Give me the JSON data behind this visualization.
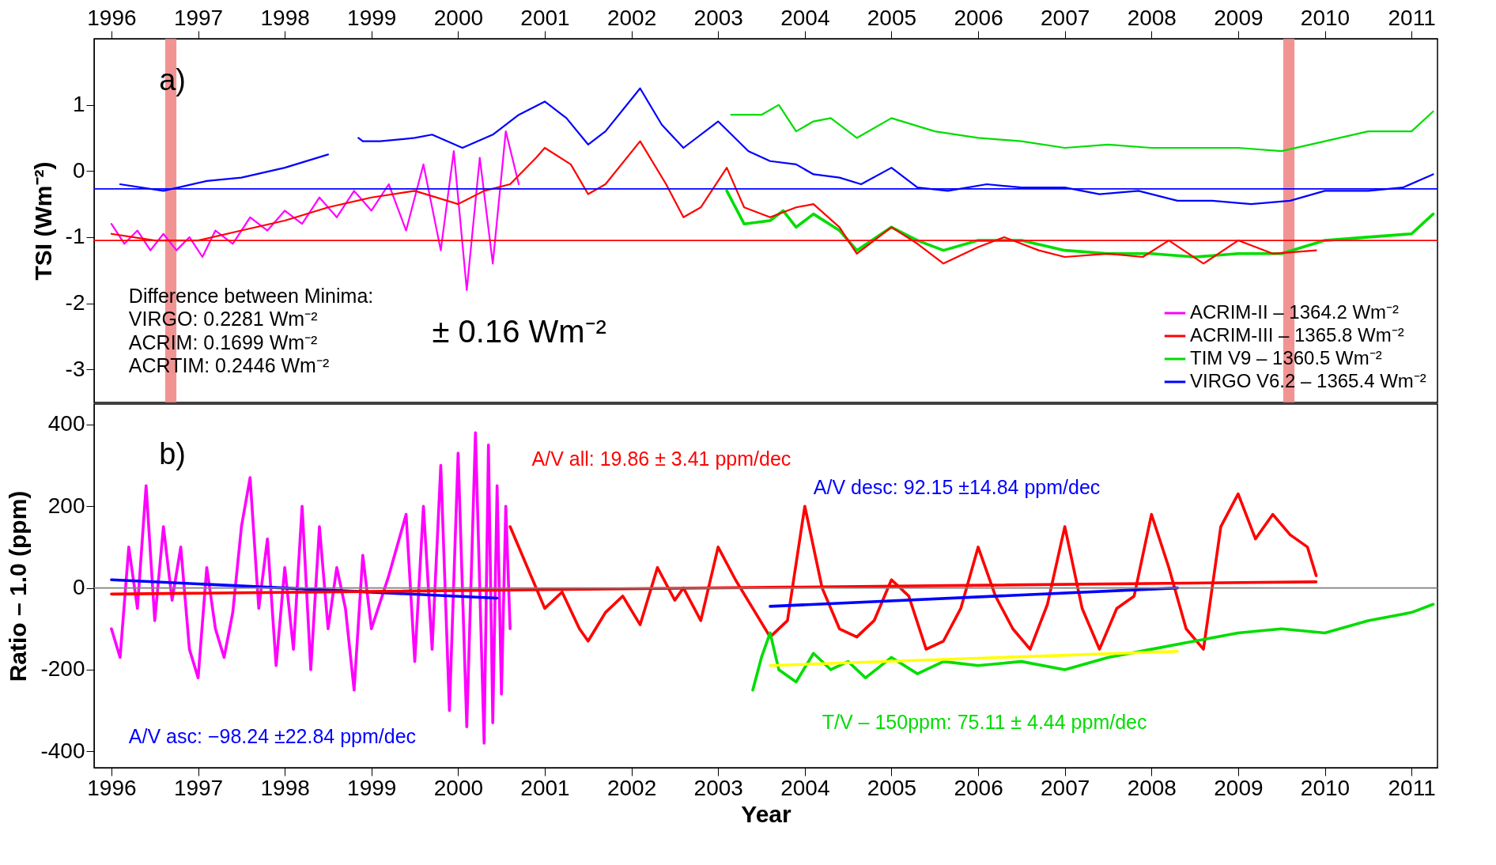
{
  "chart_data": [
    {
      "type": "line",
      "ylabel": "TSI (Wm⁻²)",
      "xlim": [
        1995.8,
        2011.3
      ],
      "xticks": [
        1996,
        1997,
        1998,
        1999,
        2000,
        2001,
        2002,
        2003,
        2004,
        2005,
        2006,
        2007,
        2008,
        2009,
        2010,
        2011
      ],
      "ylim": [
        -3.5,
        2.0
      ],
      "yticks": [
        1,
        0,
        -1,
        -2,
        -3
      ],
      "legend": "bottom right",
      "series": [
        {
          "name": "ACRIM-II – 1364.2 Wm⁻²",
          "color": "#ff00ff",
          "x": [
            1996.0,
            1996.15,
            1996.3,
            1996.45,
            1996.6,
            1996.75,
            1996.9,
            1997.05,
            1997.2,
            1997.4,
            1997.6,
            1997.8,
            1998.0,
            1998.2,
            1998.4,
            1998.6,
            1998.8,
            1999.0,
            1999.2,
            1999.4,
            1999.6,
            1999.8,
            1999.95,
            2000.1,
            2000.25,
            2000.4,
            2000.55,
            2000.7
          ],
          "values": [
            -0.8,
            -1.1,
            -0.9,
            -1.2,
            -0.95,
            -1.2,
            -1.0,
            -1.3,
            -0.9,
            -1.1,
            -0.7,
            -0.9,
            -0.6,
            -0.8,
            -0.4,
            -0.7,
            -0.3,
            -0.6,
            -0.2,
            -0.9,
            0.1,
            -1.2,
            0.3,
            -1.8,
            0.2,
            -1.4,
            0.6,
            -0.2
          ]
        },
        {
          "name": "ACRIM-III – 1365.8 Wm⁻²",
          "color": "#ff0000",
          "x": [
            1996.0,
            1996.5,
            1997.0,
            1997.5,
            1998.0,
            1998.5,
            1999.0,
            1999.5,
            2000.0,
            2000.3,
            2000.6,
            2000.9,
            2001.0,
            2001.3,
            2001.5,
            2001.7,
            2002.1,
            2002.4,
            2002.6,
            2002.8,
            2003.1,
            2003.3,
            2003.6,
            2003.9,
            2004.1,
            2004.4,
            2004.6,
            2005.0,
            2005.3,
            2005.6,
            2006.0,
            2006.3,
            2006.7,
            2007.0,
            2007.5,
            2007.9,
            2008.2,
            2008.6,
            2009.0,
            2009.4,
            2009.9
          ],
          "values": [
            -0.95,
            -1.05,
            -1.05,
            -0.9,
            -0.75,
            -0.55,
            -0.4,
            -0.3,
            -0.5,
            -0.3,
            -0.2,
            0.2,
            0.35,
            0.1,
            -0.35,
            -0.2,
            0.45,
            -0.2,
            -0.7,
            -0.55,
            0.05,
            -0.55,
            -0.7,
            -0.55,
            -0.5,
            -0.85,
            -1.25,
            -0.85,
            -1.1,
            -1.4,
            -1.15,
            -1.0,
            -1.2,
            -1.3,
            -1.25,
            -1.3,
            -1.05,
            -1.4,
            -1.05,
            -1.25,
            -1.2
          ]
        },
        {
          "name": "TIM V9 – 1360.5 Wm⁻²",
          "color": "#00dd00",
          "x": [
            2003.15,
            2003.5,
            2003.7,
            2003.9,
            2004.1,
            2004.3,
            2004.6,
            2005.0,
            2005.5,
            2006.0,
            2006.5,
            2007.0,
            2007.5,
            2008.0,
            2008.5,
            2009.0,
            2009.5,
            2010.0,
            2010.5,
            2011.0,
            2011.25
          ],
          "values": [
            0.85,
            0.85,
            1.0,
            0.6,
            0.75,
            0.8,
            0.5,
            0.8,
            0.6,
            0.5,
            0.45,
            0.35,
            0.4,
            0.35,
            0.35,
            0.35,
            0.3,
            0.45,
            0.6,
            0.6,
            0.9
          ]
        },
        {
          "name": "VIRGO V6.2 – 1365.4 Wm⁻²",
          "color": "#0000ff",
          "x": [
            1996.1,
            1996.6,
            1997.1,
            1997.5,
            1998.0,
            1998.5,
            1998.6,
            1998.8,
            1998.85,
            1998.9,
            1999.1,
            1999.5,
            1999.7,
            2000.05,
            2000.4,
            2000.7,
            2001.0,
            2001.25,
            2001.5,
            2001.7,
            2002.1,
            2002.35,
            2002.6,
            2003.0,
            2003.35,
            2003.6,
            2003.9,
            2004.1,
            2004.4,
            2004.65,
            2005.0,
            2005.3,
            2005.65,
            2006.1,
            2006.5,
            2007.0,
            2007.4,
            2007.85,
            2008.3,
            2008.7,
            2009.15,
            2009.6,
            2010.0,
            2010.5,
            2010.9,
            2011.25
          ],
          "values": [
            -0.2,
            -0.3,
            -0.15,
            -0.1,
            0.05,
            0.25,
            null,
            null,
            0.5,
            0.45,
            0.45,
            0.5,
            0.55,
            0.35,
            0.55,
            0.85,
            1.05,
            0.8,
            0.4,
            0.6,
            1.25,
            0.7,
            0.35,
            0.75,
            0.3,
            0.15,
            0.1,
            -0.05,
            -0.1,
            -0.2,
            0.05,
            -0.25,
            -0.3,
            -0.2,
            -0.25,
            -0.25,
            -0.35,
            -0.3,
            -0.45,
            -0.45,
            -0.5,
            -0.45,
            -0.3,
            -0.3,
            -0.25,
            -0.05
          ]
        },
        {
          "color": "#00dd00",
          "x": [
            2003.1,
            2003.3,
            2003.6,
            2003.75,
            2003.9,
            2004.1,
            2004.4,
            2004.6,
            2005.0,
            2005.3,
            2005.6,
            2006.0,
            2006.5,
            2007.0,
            2007.5,
            2008.0,
            2008.5,
            2009.0,
            2009.5,
            2010.0,
            2010.5,
            2011.0,
            2011.25
          ],
          "values": [
            -0.3,
            -0.8,
            -0.75,
            -0.6,
            -0.85,
            -0.65,
            -0.9,
            -1.2,
            -0.85,
            -1.05,
            -1.2,
            -1.05,
            -1.05,
            -1.2,
            -1.25,
            -1.25,
            -1.3,
            -1.25,
            -1.25,
            -1.05,
            -1.0,
            -0.95,
            -0.65
          ]
        }
      ],
      "ref_lines": [
        {
          "axis": "y",
          "value": -0.27,
          "color": "#0000ff"
        },
        {
          "axis": "y",
          "value": -1.05,
          "color": "#ff0000"
        }
      ],
      "bands": [
        {
          "axis": "x",
          "from": 1996.62,
          "to": 1996.75,
          "color": "#f08080"
        },
        {
          "axis": "x",
          "from": 2009.52,
          "to": 2009.65,
          "color": "#f08080"
        }
      ],
      "annotations": [
        "a)",
        "Difference between Minima:",
        "VIRGO:  0.2281 Wm⁻²",
        "ACRIM:  0.1699 Wm⁻²",
        "ACRTIM: 0.2446 Wm⁻²",
        "± 0.16  Wm⁻²"
      ]
    },
    {
      "type": "line",
      "xlabel": "Year",
      "ylabel": "Ratio – 1.0  (ppm)",
      "xlim": [
        1995.8,
        2011.3
      ],
      "xticks": [
        1996,
        1997,
        1998,
        1999,
        2000,
        2001,
        2002,
        2003,
        2004,
        2005,
        2006,
        2007,
        2008,
        2009,
        2010,
        2011
      ],
      "ylim": [
        -440,
        450
      ],
      "yticks": [
        -400,
        -200,
        0,
        200,
        400
      ],
      "series": [
        {
          "color": "#ff00ff",
          "x": [
            1996.0,
            1996.1,
            1996.2,
            1996.3,
            1996.4,
            1996.5,
            1996.6,
            1996.7,
            1996.8,
            1996.9,
            1997.0,
            1997.1,
            1997.2,
            1997.3,
            1997.4,
            1997.5,
            1997.6,
            1997.7,
            1997.8,
            1997.9,
            1998.0,
            1998.1,
            1998.2,
            1998.3,
            1998.4,
            1998.5,
            1998.6,
            1998.7,
            1998.8,
            1998.9,
            1999.0,
            1999.2,
            1999.4,
            1999.5,
            1999.6,
            1999.7,
            1999.8,
            1999.9,
            2000.0,
            2000.1,
            2000.2,
            2000.3,
            2000.35,
            2000.4,
            2000.45,
            2000.5,
            2000.55,
            2000.6
          ],
          "values": [
            -100,
            -170,
            100,
            -50,
            250,
            -80,
            150,
            -30,
            100,
            -150,
            -220,
            50,
            -100,
            -170,
            -60,
            150,
            270,
            -50,
            120,
            -190,
            50,
            -150,
            200,
            -200,
            150,
            -100,
            50,
            -50,
            -250,
            80,
            -100,
            30,
            180,
            -180,
            200,
            -150,
            300,
            -300,
            330,
            -340,
            380,
            -380,
            350,
            -330,
            250,
            -260,
            200,
            -100
          ]
        },
        {
          "color": "#ff0000",
          "x": [
            2000.6,
            2000.8,
            2001.0,
            2001.2,
            2001.4,
            2001.5,
            2001.7,
            2001.9,
            2002.1,
            2002.3,
            2002.5,
            2002.6,
            2002.8,
            2003.0,
            2003.2,
            2003.4,
            2003.6,
            2003.8,
            2004.0,
            2004.2,
            2004.4,
            2004.6,
            2004.8,
            2005.0,
            2005.2,
            2005.4,
            2005.6,
            2005.8,
            2006.0,
            2006.2,
            2006.4,
            2006.6,
            2006.8,
            2007.0,
            2007.2,
            2007.4,
            2007.6,
            2007.8,
            2008.0,
            2008.2,
            2008.4,
            2008.6,
            2008.8,
            2009.0,
            2009.2,
            2009.4,
            2009.6,
            2009.8,
            2009.9
          ],
          "values": [
            150,
            50,
            -50,
            -10,
            -100,
            -130,
            -60,
            -20,
            -90,
            50,
            -30,
            0,
            -80,
            100,
            20,
            -50,
            -120,
            -80,
            200,
            0,
            -100,
            -120,
            -80,
            20,
            -20,
            -150,
            -130,
            -50,
            100,
            -20,
            -100,
            -150,
            -40,
            150,
            -50,
            -150,
            -50,
            -20,
            180,
            50,
            -100,
            -150,
            150,
            230,
            120,
            180,
            130,
            100,
            30
          ]
        },
        {
          "color": "#00dd00",
          "x": [
            2003.4,
            2003.5,
            2003.6,
            2003.7,
            2003.9,
            2004.1,
            2004.3,
            2004.5,
            2004.7,
            2005.0,
            2005.3,
            2005.6,
            2006.0,
            2006.5,
            2007.0,
            2007.5,
            2008.0,
            2008.5,
            2009.0,
            2009.5,
            2010.0,
            2010.5,
            2011.0,
            2011.25
          ],
          "values": [
            -250,
            -170,
            -110,
            -200,
            -230,
            -160,
            -200,
            -180,
            -220,
            -170,
            -210,
            -180,
            -190,
            -180,
            -200,
            -170,
            -150,
            -130,
            -110,
            -100,
            -110,
            -80,
            -60,
            -40
          ]
        },
        {
          "color": "#0000ff",
          "x": [
            1996.0,
            2000.45
          ],
          "values": [
            20,
            -25
          ]
        },
        {
          "color": "#ff0000",
          "x": [
            1996.0,
            2009.9
          ],
          "values": [
            -15,
            15
          ]
        },
        {
          "color": "#0000ff",
          "x": [
            2003.6,
            2008.3
          ],
          "values": [
            -45,
            0
          ]
        },
        {
          "color": "#ffff00",
          "x": [
            2003.6,
            2008.3
          ],
          "values": [
            -190,
            -155
          ]
        }
      ],
      "ref_lines": [
        {
          "axis": "y",
          "value": 0,
          "color": "#808080"
        }
      ],
      "annotations": [
        "b)",
        "A/V all:  19.86 ± 3.41 ppm/dec",
        "A/V desc:  92.15 ±14.84 ppm/dec",
        "A/V asc: −98.24 ±22.84 ppm/dec",
        "T/V – 150ppm:  75.11 ± 4.44 ppm/dec"
      ]
    }
  ]
}
